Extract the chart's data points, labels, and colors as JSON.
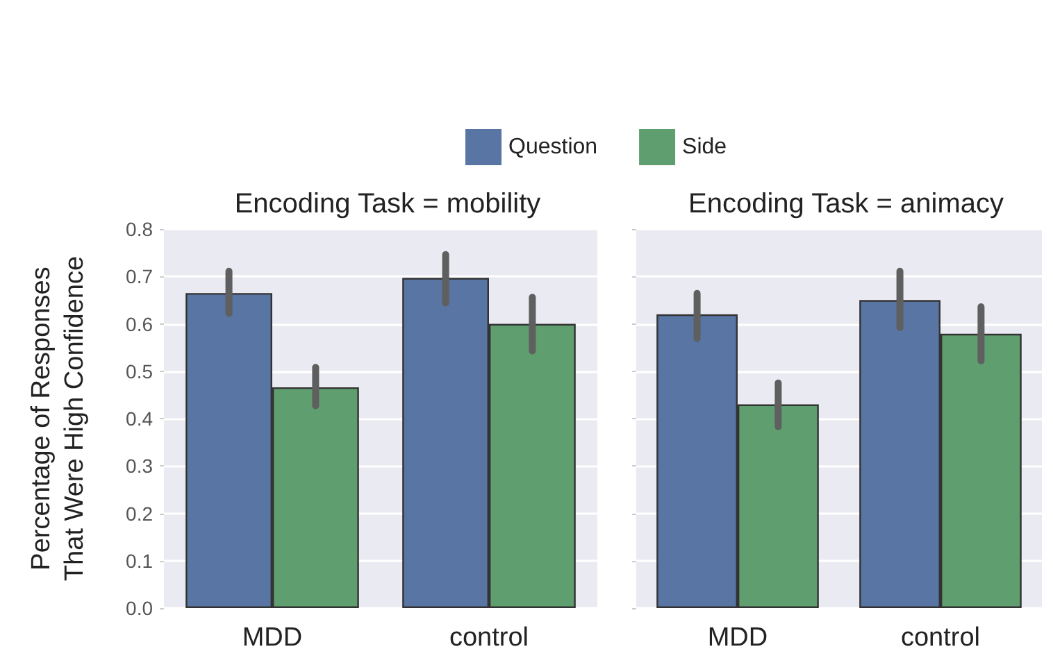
{
  "chart_data": [
    {
      "type": "bar",
      "title": "Encoding Task = mobility",
      "ylabel": "Percentage of Responses\nThat Were High Confidence",
      "categories": [
        "MDD",
        "control"
      ],
      "series": [
        {
          "name": "Question",
          "color": "#5875a4",
          "values": [
            0.665,
            0.697
          ],
          "errors": [
            [
              0.622,
              0.711
            ],
            [
              0.644,
              0.746
            ]
          ]
        },
        {
          "name": "Side",
          "color": "#5f9e6e",
          "values": [
            0.466,
            0.6
          ],
          "errors": [
            [
              0.427,
              0.508
            ],
            [
              0.543,
              0.656
            ]
          ]
        }
      ],
      "ylim": [
        0,
        0.8
      ],
      "yticks": [
        {
          "value": 0,
          "label": "0.0"
        },
        {
          "value": 0.1,
          "label": "0.1"
        },
        {
          "value": 0.2,
          "label": "0.2"
        },
        {
          "value": 0.3,
          "label": "0.3"
        },
        {
          "value": 0.4,
          "label": "0.4"
        },
        {
          "value": 0.5,
          "label": "0.5"
        },
        {
          "value": 0.6,
          "label": "0.6"
        },
        {
          "value": 0.7,
          "label": "0.7"
        },
        {
          "value": 0.8,
          "label": "0.8"
        }
      ],
      "grid": "y",
      "legend": "top"
    },
    {
      "type": "bar",
      "title": "Encoding Task = animacy",
      "categories": [
        "MDD",
        "control"
      ],
      "series": [
        {
          "color": "#5875a4",
          "values": [
            0.62,
            0.65
          ],
          "errors": [
            [
              0.569,
              0.664
            ],
            [
              0.592,
              0.711
            ]
          ]
        },
        {
          "color": "#5f9e6e",
          "values": [
            0.43,
            0.579
          ],
          "errors": [
            [
              0.383,
              0.475
            ],
            [
              0.522,
              0.636
            ]
          ]
        }
      ],
      "ylim": [
        0,
        0.8
      ],
      "yticks": [
        {
          "value": 0,
          "label": null
        },
        {
          "value": 0.1,
          "label": null
        },
        {
          "value": 0.2,
          "label": null
        },
        {
          "value": 0.3,
          "label": null
        },
        {
          "value": 0.4,
          "label": null
        },
        {
          "value": 0.5,
          "label": null
        },
        {
          "value": 0.6,
          "label": null
        },
        {
          "value": 0.7,
          "label": null
        },
        {
          "value": 0.8,
          "label": null
        }
      ],
      "grid": "y",
      "tick_labels": "x"
    }
  ]
}
